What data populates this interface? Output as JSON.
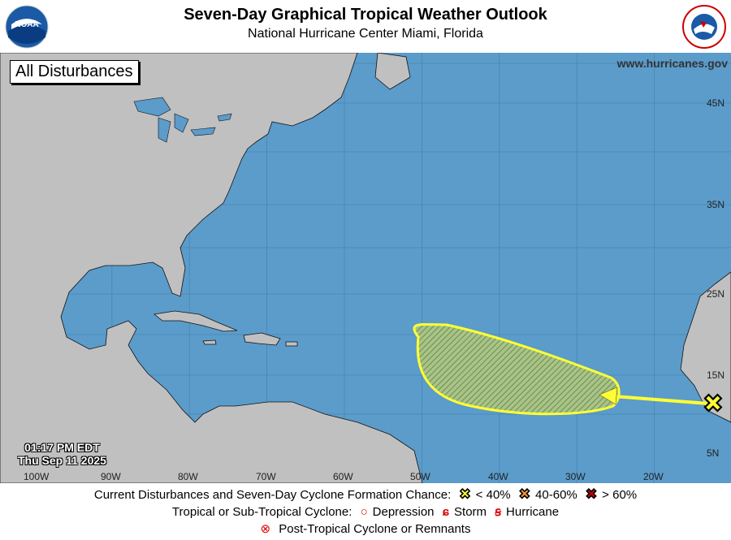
{
  "header": {
    "title": "Seven-Day Graphical Tropical Weather Outlook",
    "subtitle": "National Hurricane Center  Miami, Florida",
    "left_logo": "NOAA",
    "right_logo": "National Weather Service"
  },
  "map": {
    "view_label": "All Disturbances",
    "website": "www.hurricanes.gov",
    "timestamp_time": "01:17 PM EDT",
    "timestamp_date": "Thu Sep 11 2025",
    "lon_labels": [
      "100W",
      "90W",
      "80W",
      "70W",
      "60W",
      "50W",
      "40W",
      "30W",
      "20W"
    ],
    "lat_labels": [
      "45N",
      "35N",
      "25N",
      "15N",
      "5N"
    ],
    "colors": {
      "ocean": "#5b9ccb",
      "land": "#c0c0c0",
      "disturbance_area": "#ffff33",
      "low_chance": "#ffff33",
      "medium_chance": "#ff9933",
      "high_chance": "#cc0000"
    },
    "disturbances": [
      {
        "chance_category": "< 40%",
        "marker": "yellow-x"
      }
    ]
  },
  "legend": {
    "row1_label": "Current Disturbances and Seven-Day Cyclone Formation Chance:",
    "low": "< 40%",
    "medium": "40-60%",
    "high": "> 60%",
    "row2_label": "Tropical or Sub-Tropical Cyclone:",
    "depression": "Depression",
    "storm": "Storm",
    "hurricane": "Hurricane",
    "post_tropical": "Post-Tropical Cyclone or Remnants"
  }
}
